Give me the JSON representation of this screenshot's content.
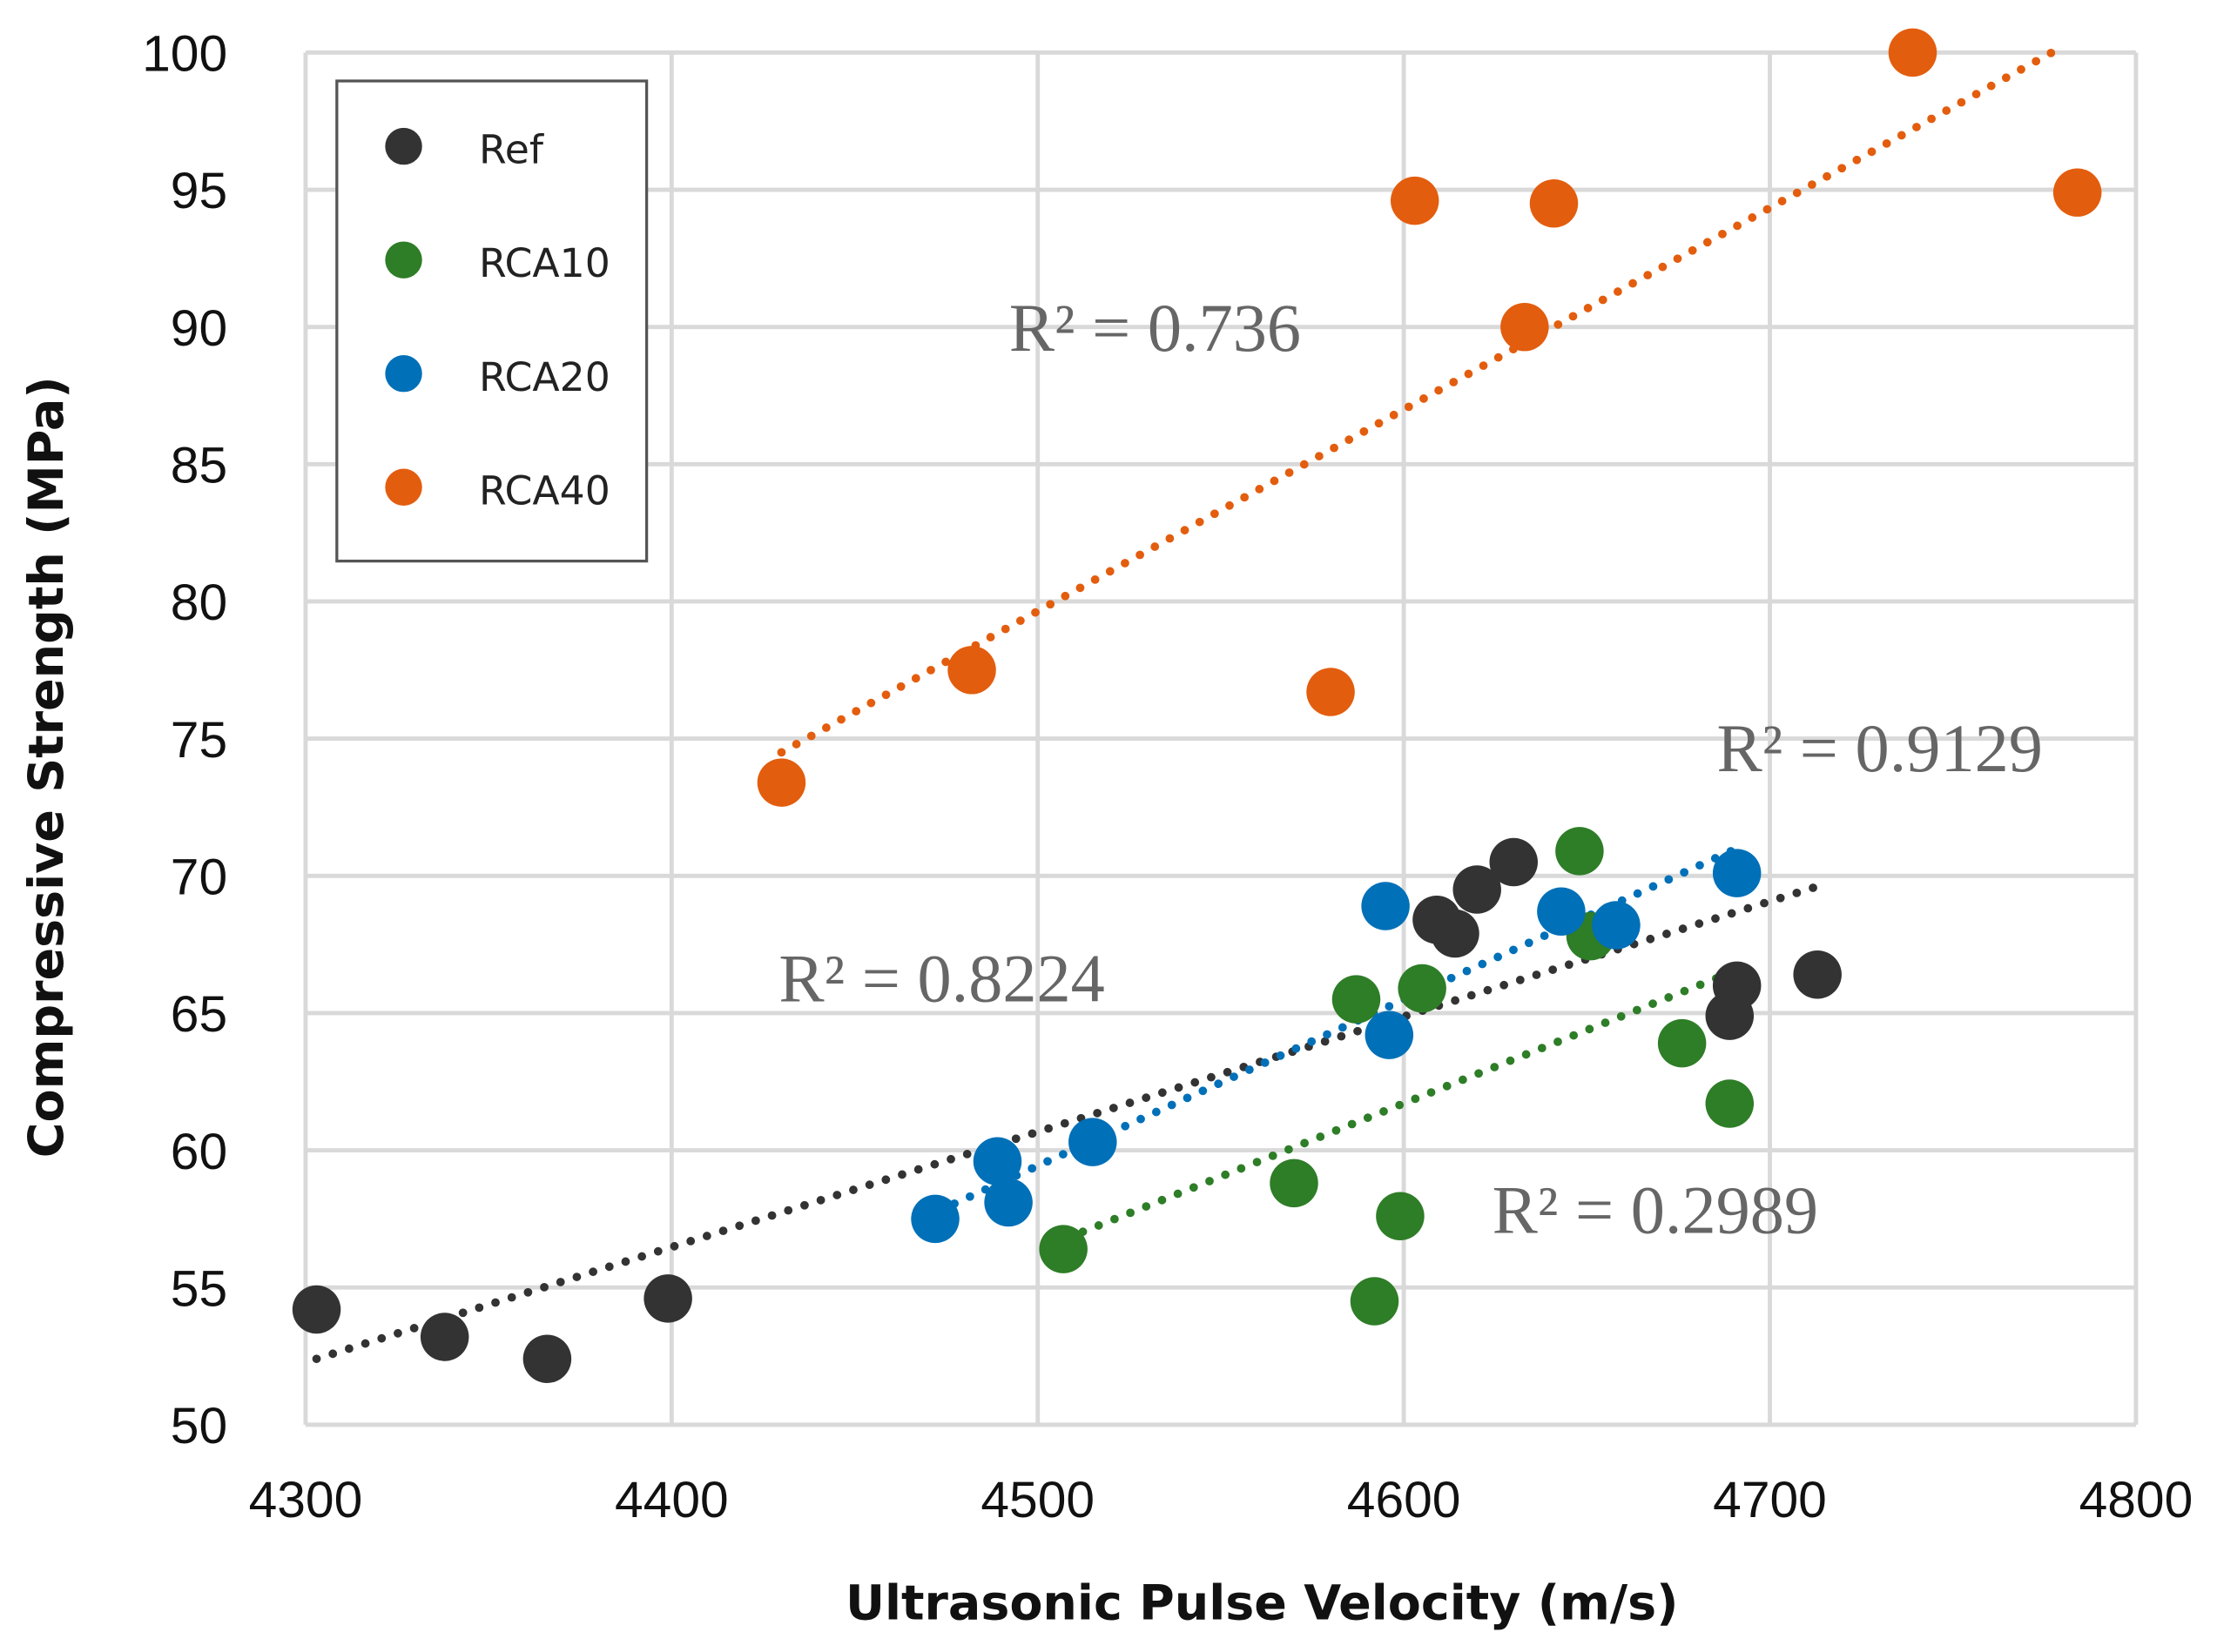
{
  "chart_data": {
    "type": "scatter",
    "title": "",
    "xlabel": "Ultrasonic Pulse Velocity (m/s)",
    "ylabel": "Compressive Strength (MPa)",
    "xlim": [
      4300,
      4800
    ],
    "ylim": [
      50,
      100
    ],
    "xticks": [
      "4300",
      "4400",
      "4500",
      "4600",
      "4700",
      "4800"
    ],
    "yticks": [
      "50",
      "55",
      "60",
      "65",
      "70",
      "75",
      "80",
      "85",
      "90",
      "95",
      "100"
    ],
    "grid": true,
    "legend_position": "top-left",
    "series": [
      {
        "name": "Ref",
        "color": "#333333",
        "points": [
          [
            4303,
            54.2
          ],
          [
            4338,
            53.2
          ],
          [
            4366,
            52.4
          ],
          [
            4399,
            54.6
          ],
          [
            4609,
            68.4
          ],
          [
            4614,
            67.9
          ],
          [
            4620,
            69.5
          ],
          [
            4630,
            70.5
          ],
          [
            4689,
            64.9
          ],
          [
            4691,
            66.0
          ],
          [
            4713,
            66.4
          ]
        ],
        "trendline": [
          [
            4303,
            52.4
          ],
          [
            4715,
            69.7
          ]
        ],
        "r2_label": "R² = 0.8224"
      },
      {
        "name": "RCA10",
        "color": "#2e7d27",
        "points": [
          [
            4507,
            56.4
          ],
          [
            4570,
            58.8
          ],
          [
            4587,
            65.5
          ],
          [
            4592,
            54.5
          ],
          [
            4599,
            57.6
          ],
          [
            4605,
            65.9
          ],
          [
            4648,
            70.9
          ],
          [
            4651,
            67.8
          ],
          [
            4676,
            63.9
          ],
          [
            4689,
            61.7
          ]
        ],
        "trendline": [
          [
            4508,
            56.8
          ],
          [
            4686,
            66.3
          ]
        ],
        "r2_label": "R² = 0.2989"
      },
      {
        "name": "RCA20",
        "color": "#0070b8",
        "points": [
          [
            4472,
            57.5
          ],
          [
            4489,
            59.6
          ],
          [
            4492,
            58.1
          ],
          [
            4515,
            60.3
          ],
          [
            4595,
            68.9
          ],
          [
            4596,
            64.2
          ],
          [
            4643,
            68.7
          ],
          [
            4658,
            68.2
          ],
          [
            4691,
            70.1
          ]
        ],
        "trendline": [
          [
            4473,
            57.8
          ],
          [
            4691,
            71.0
          ]
        ],
        "r2_label": "R² = 0.9129"
      },
      {
        "name": "RCA40",
        "color": "#e35d0e",
        "points": [
          [
            4430,
            73.4
          ],
          [
            4482,
            77.5
          ],
          [
            4580,
            76.7
          ],
          [
            4603,
            94.6
          ],
          [
            4633,
            90.0
          ],
          [
            4641,
            94.5
          ],
          [
            4739,
            100.0
          ],
          [
            4784,
            94.9
          ]
        ],
        "trendline": [
          [
            4430,
            74.5
          ],
          [
            4777,
            100
          ]
        ],
        "r2_label": "R² = 0.736"
      }
    ]
  }
}
